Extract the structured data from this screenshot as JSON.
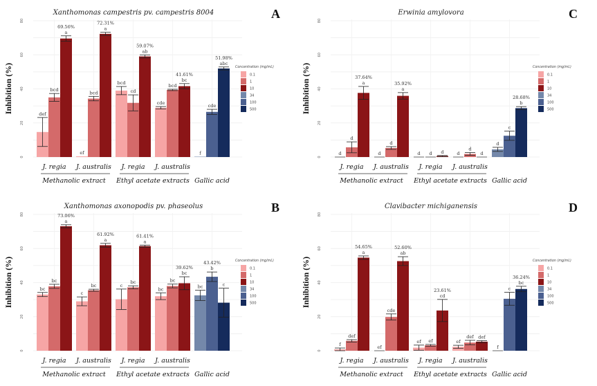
{
  "figure": {
    "ylabel": "Inhibition (%)",
    "legend_title": "Concentration (mg/mL)",
    "concentrations": [
      "0.1",
      "1",
      "10",
      "34",
      "100",
      "500"
    ],
    "colors": {
      "0.1": "#f6a5a5",
      "1": "#d46a6a",
      "10": "#8b1517",
      "34": "#7488aa",
      "100": "#4b6090",
      "500": "#152b5c"
    }
  },
  "chart_data": [
    {
      "panel": "A",
      "type": "bar",
      "title": "Xanthomonas campestris pv. campestris 8004",
      "ylabel": "Inhibition (%)",
      "ylim": [
        0,
        80
      ],
      "yticks": [
        "0",
        "20",
        "40",
        "60",
        "80"
      ],
      "grid": true,
      "legend": "right",
      "groups": [
        {
          "extract": "Methanolic extract",
          "species": "J. regia",
          "bars": [
            {
              "conc": "0.1",
              "value": 14.7,
              "err": 8.5,
              "letter": "def"
            },
            {
              "conc": "1",
              "value": 35.0,
              "err": 2.3,
              "letter": "bcd"
            },
            {
              "conc": "10",
              "value": 69.56,
              "err": 1.6,
              "letter": "a",
              "label": "69.56%"
            }
          ]
        },
        {
          "extract": "Methanolic extract",
          "species": "J. australis",
          "bars": [
            {
              "conc": "0.1",
              "value": 0.4,
              "err": 0,
              "letter": "ef"
            },
            {
              "conc": "1",
              "value": 34.3,
              "err": 1.3,
              "letter": "bcd"
            },
            {
              "conc": "10",
              "value": 72.31,
              "err": 0.9,
              "letter": "a",
              "label": "72.31%"
            }
          ]
        },
        {
          "extract": "Ethyl acetate extracts",
          "species": "J. regia",
          "bars": [
            {
              "conc": "0.1",
              "value": 39.0,
              "err": 2.4,
              "letter": "bcd"
            },
            {
              "conc": "1",
              "value": 31.8,
              "err": 4.7,
              "letter": "cd"
            },
            {
              "conc": "10",
              "value": 59.07,
              "err": 0.9,
              "letter": "ab",
              "label": "59.07%"
            }
          ]
        },
        {
          "extract": "Ethyl acetate extracts",
          "species": "J. australis",
          "bars": [
            {
              "conc": "0.1",
              "value": 28.9,
              "err": 0.7,
              "letter": "cde"
            },
            {
              "conc": "1",
              "value": 39.4,
              "err": 0.4,
              "letter": "bcd"
            },
            {
              "conc": "10",
              "value": 41.61,
              "err": 1.5,
              "letter": "bc",
              "label": "41.61%"
            }
          ]
        },
        {
          "extract": "Gallic acid",
          "species": "",
          "bars": [
            {
              "conc": "34",
              "value": 0.2,
              "err": 0,
              "letter": "f"
            },
            {
              "conc": "100",
              "value": 26.5,
              "err": 1.5,
              "letter": "cde"
            },
            {
              "conc": "500",
              "value": 51.98,
              "err": 0.9,
              "letter": "abc",
              "label": "51.98%"
            }
          ]
        }
      ]
    },
    {
      "panel": "C",
      "type": "bar",
      "title": "Erwinia amylovora",
      "ylabel": "Inhibition (%)",
      "ylim": [
        0,
        80
      ],
      "yticks": [
        "0",
        "20",
        "40",
        "60",
        "80"
      ],
      "grid": true,
      "legend": "right",
      "groups": [
        {
          "extract": "Methanolic extract",
          "species": "J. regia",
          "bars": [
            {
              "conc": "0.1",
              "value": 0,
              "err": 0,
              "letter": "d"
            },
            {
              "conc": "1",
              "value": 5.7,
              "err": 3.2,
              "letter": "d"
            },
            {
              "conc": "10",
              "value": 37.64,
              "err": 3.8,
              "letter": "a",
              "label": "37.64%"
            }
          ]
        },
        {
          "extract": "Methanolic extract",
          "species": "J. australis",
          "bars": [
            {
              "conc": "0.1",
              "value": 0,
              "err": 0,
              "letter": "d"
            },
            {
              "conc": "1",
              "value": 5.3,
              "err": 0.8,
              "letter": "d"
            },
            {
              "conc": "10",
              "value": 35.92,
              "err": 1.9,
              "letter": "a",
              "label": "35.92%"
            }
          ]
        },
        {
          "extract": "Ethyl acetate extracts",
          "species": "J. regia",
          "bars": [
            {
              "conc": "0.1",
              "value": 0,
              "err": 0,
              "letter": "d"
            },
            {
              "conc": "1",
              "value": 0,
              "err": 0,
              "letter": "d"
            },
            {
              "conc": "10",
              "value": 0.6,
              "err": 0.3,
              "letter": "d"
            }
          ]
        },
        {
          "extract": "Ethyl acetate extracts",
          "species": "J. australis",
          "bars": [
            {
              "conc": "0.1",
              "value": 0,
              "err": 0,
              "letter": "d"
            },
            {
              "conc": "1",
              "value": 1.8,
              "err": 0.8,
              "letter": "d"
            },
            {
              "conc": "10",
              "value": 0,
              "err": 0,
              "letter": "d"
            }
          ]
        },
        {
          "extract": "Gallic acid",
          "species": "",
          "bars": [
            {
              "conc": "34",
              "value": 4.5,
              "err": 1.2,
              "letter": "d"
            },
            {
              "conc": "100",
              "value": 12.5,
              "err": 2.7,
              "letter": "c"
            },
            {
              "conc": "500",
              "value": 28.68,
              "err": 0.9,
              "letter": "b",
              "label": "28.68%"
            }
          ]
        }
      ]
    },
    {
      "panel": "B",
      "type": "bar",
      "title": "Xanthomonas axonopodis pv. phaseolus",
      "ylabel": "Inhibition (%)",
      "ylim": [
        0,
        80
      ],
      "yticks": [
        "0",
        "20",
        "40",
        "60",
        "80"
      ],
      "grid": true,
      "legend": "right",
      "groups": [
        {
          "extract": "Methanolic extract",
          "species": "J. regia",
          "bars": [
            {
              "conc": "0.1",
              "value": 33.0,
              "err": 1.2,
              "letter": "bc"
            },
            {
              "conc": "1",
              "value": 37.8,
              "err": 1.2,
              "letter": "bc"
            },
            {
              "conc": "10",
              "value": 73.06,
              "err": 0.9,
              "letter": "a",
              "label": "73.06%"
            }
          ]
        },
        {
          "extract": "Methanolic extract",
          "species": "J. australis",
          "bars": [
            {
              "conc": "0.1",
              "value": 29.0,
              "err": 2.6,
              "letter": "c"
            },
            {
              "conc": "1",
              "value": 35.5,
              "err": 0.6,
              "letter": "bc"
            },
            {
              "conc": "10",
              "value": 61.92,
              "err": 1.1,
              "letter": "a",
              "label": "61.92%"
            }
          ]
        },
        {
          "extract": "Ethyl acetate extracts",
          "species": "J. regia",
          "bars": [
            {
              "conc": "0.1",
              "value": 30.2,
              "err": 6.0,
              "letter": "c"
            },
            {
              "conc": "1",
              "value": 37.2,
              "err": 0.9,
              "letter": "bc"
            },
            {
              "conc": "10",
              "value": 61.41,
              "err": 0.6,
              "letter": "a",
              "label": "61.41%"
            }
          ]
        },
        {
          "extract": "Ethyl acetate extracts",
          "species": "J. australis",
          "bars": [
            {
              "conc": "0.1",
              "value": 32.0,
              "err": 2.0,
              "letter": "bc"
            },
            {
              "conc": "1",
              "value": 38.0,
              "err": 1.1,
              "letter": "bc"
            },
            {
              "conc": "10",
              "value": 39.62,
              "err": 3.8,
              "letter": "bc",
              "label": "39.62%"
            }
          ]
        },
        {
          "extract": "Gallic acid",
          "species": "",
          "bars": [
            {
              "conc": "34",
              "value": 32.5,
              "err": 3.0,
              "letter": "bc"
            },
            {
              "conc": "100",
              "value": 43.42,
              "err": 2.8,
              "letter": "b",
              "label": "43.42%"
            },
            {
              "conc": "500",
              "value": 28.2,
              "err": 8.5,
              "letter": "c"
            }
          ]
        }
      ]
    },
    {
      "panel": "D",
      "type": "bar",
      "title": "Clavibacter michiganensis",
      "ylabel": "Inhibition (%)",
      "ylim": [
        0,
        80
      ],
      "yticks": [
        "0",
        "20",
        "40",
        "60",
        "80"
      ],
      "grid": true,
      "legend": "right",
      "groups": [
        {
          "extract": "Methanolic extract",
          "species": "J. regia",
          "bars": [
            {
              "conc": "0.1",
              "value": 0.8,
              "err": 0.8,
              "letter": "f"
            },
            {
              "conc": "1",
              "value": 5.8,
              "err": 0.7,
              "letter": "def"
            },
            {
              "conc": "10",
              "value": 54.65,
              "err": 1.0,
              "letter": "a",
              "label": "54.65%"
            }
          ]
        },
        {
          "extract": "Methanolic extract",
          "species": "J. australis",
          "bars": [
            {
              "conc": "0.1",
              "value": 0,
              "err": 0,
              "letter": "ef"
            },
            {
              "conc": "1",
              "value": 19.8,
              "err": 1.8,
              "letter": "cde"
            },
            {
              "conc": "10",
              "value": 52.6,
              "err": 2.6,
              "letter": "ab",
              "label": "52.60%"
            }
          ]
        },
        {
          "extract": "Ethyl acetate extracts",
          "species": "J. regia",
          "bars": [
            {
              "conc": "0.1",
              "value": 1.8,
              "err": 1.5,
              "letter": "ef"
            },
            {
              "conc": "1",
              "value": 3.2,
              "err": 0.5,
              "letter": "ef"
            },
            {
              "conc": "10",
              "value": 23.61,
              "err": 6.5,
              "letter": "cd",
              "label": "23.61%"
            }
          ]
        },
        {
          "extract": "Ethyl acetate extracts",
          "species": "J. australis",
          "bars": [
            {
              "conc": "0.1",
              "value": 2.3,
              "err": 0.9,
              "letter": "ef"
            },
            {
              "conc": "1",
              "value": 4.8,
              "err": 1.3,
              "letter": "def"
            },
            {
              "conc": "10",
              "value": 5.3,
              "err": 0.6,
              "letter": "def"
            }
          ]
        },
        {
          "extract": "Gallic acid",
          "species": "",
          "bars": [
            {
              "conc": "34",
              "value": 0,
              "err": 0,
              "letter": "f"
            },
            {
              "conc": "100",
              "value": 30.5,
              "err": 3.8,
              "letter": "c"
            },
            {
              "conc": "500",
              "value": 36.24,
              "err": 1.6,
              "letter": "bc",
              "label": "36.24%"
            }
          ]
        }
      ]
    }
  ]
}
